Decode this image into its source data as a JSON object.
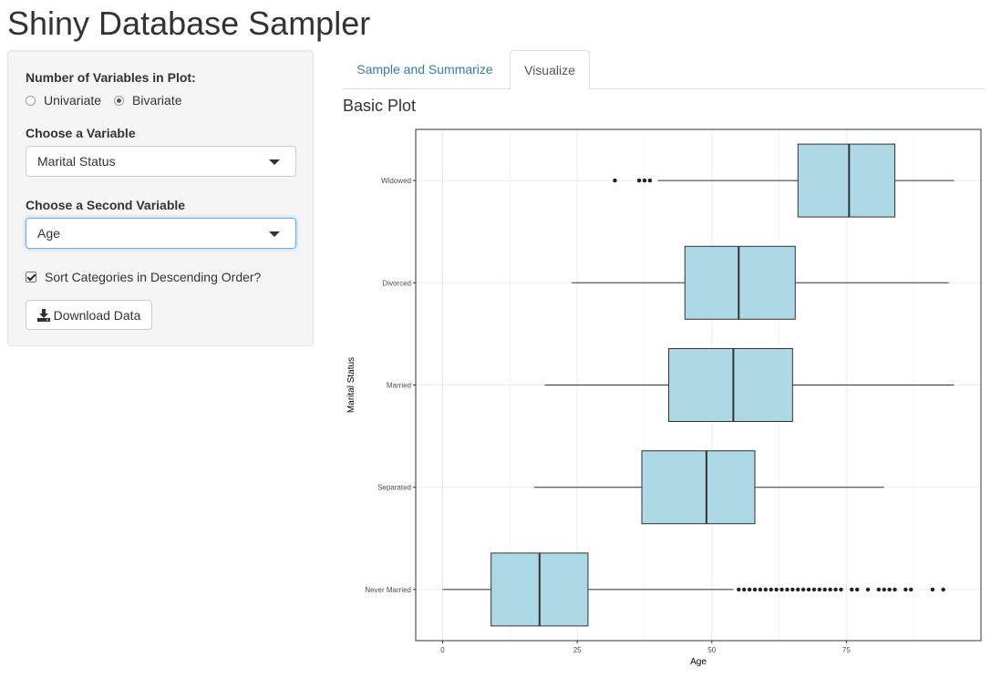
{
  "app": {
    "title": "Shiny Database Sampler"
  },
  "sidebar": {
    "num_vars_label": "Number of Variables in Plot:",
    "radio_options": [
      {
        "label": "Univariate",
        "checked": false
      },
      {
        "label": "Bivariate",
        "checked": true
      }
    ],
    "var1_label": "Choose a Variable",
    "var1_value": "Marital Status",
    "var2_label": "Choose a Second Variable",
    "var2_value": "Age",
    "sort_label": "Sort Categories in Descending Order?",
    "sort_checked": true,
    "download_label": "Download Data"
  },
  "tabs": [
    {
      "label": "Sample and Summarize",
      "active": false
    },
    {
      "label": "Visualize",
      "active": true
    }
  ],
  "plot": {
    "title": "Basic Plot"
  },
  "chart_data": {
    "type": "boxplot",
    "orientation": "horizontal",
    "xlabel": "Age",
    "ylabel": "Marital Status",
    "xlim": [
      -5,
      100
    ],
    "xticks": [
      0,
      25,
      50,
      75
    ],
    "grid": true,
    "box_fill": "#add8e6",
    "box_stroke": "#333333",
    "categories": [
      "Widowed",
      "Divorced",
      "Married",
      "Separated",
      "Never Married"
    ],
    "boxes": [
      {
        "category": "Widowed",
        "whisker_low": 40,
        "q1": 66,
        "median": 75.5,
        "q3": 84,
        "whisker_high": 95,
        "outliers": [
          32,
          36.5,
          37.5,
          38.5
        ]
      },
      {
        "category": "Divorced",
        "whisker_low": 24,
        "q1": 45,
        "median": 55,
        "q3": 65.5,
        "whisker_high": 94,
        "outliers": []
      },
      {
        "category": "Married",
        "whisker_low": 19,
        "q1": 42,
        "median": 54,
        "q3": 65,
        "whisker_high": 95,
        "outliers": []
      },
      {
        "category": "Separated",
        "whisker_low": 17,
        "q1": 37,
        "median": 49,
        "q3": 58,
        "whisker_high": 82,
        "outliers": []
      },
      {
        "category": "Never Married",
        "whisker_low": 0,
        "q1": 9,
        "median": 18,
        "q3": 27,
        "whisker_high": 54,
        "outliers": [
          55,
          56,
          57,
          58,
          59,
          60,
          61,
          62,
          63,
          64,
          65,
          66,
          67,
          68,
          69,
          70,
          71,
          72,
          73,
          74,
          76,
          77,
          79,
          81,
          82,
          83,
          84,
          86,
          87,
          91,
          93
        ]
      }
    ]
  }
}
